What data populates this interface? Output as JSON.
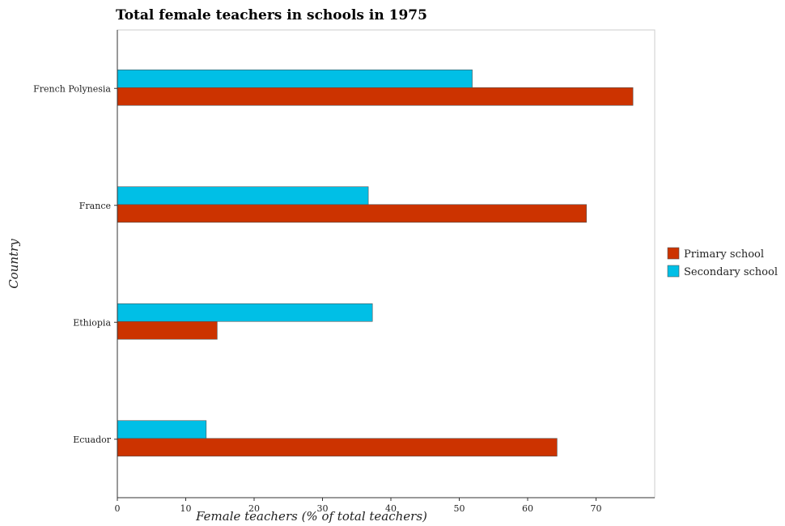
{
  "chart_data": {
    "type": "bar",
    "orientation": "horizontal",
    "title": "Total female teachers in schools in 1975",
    "xlabel": "Female teachers (% of total teachers)",
    "ylabel": "Country",
    "categories": [
      "Ecuador",
      "Ethiopia",
      "France",
      "French Polynesia"
    ],
    "series": [
      {
        "name": "Primary school",
        "color": "#cc3300",
        "values": [
          64.3,
          14.6,
          68.6,
          75.4
        ]
      },
      {
        "name": "Secondary school",
        "color": "#00bfe6",
        "values": [
          13.0,
          37.3,
          36.7,
          51.9
        ]
      }
    ],
    "xlim": [
      0,
      78
    ],
    "xticks": [
      0,
      10,
      20,
      30,
      40,
      50,
      60,
      70
    ],
    "grid": false,
    "legend_position": "right"
  }
}
